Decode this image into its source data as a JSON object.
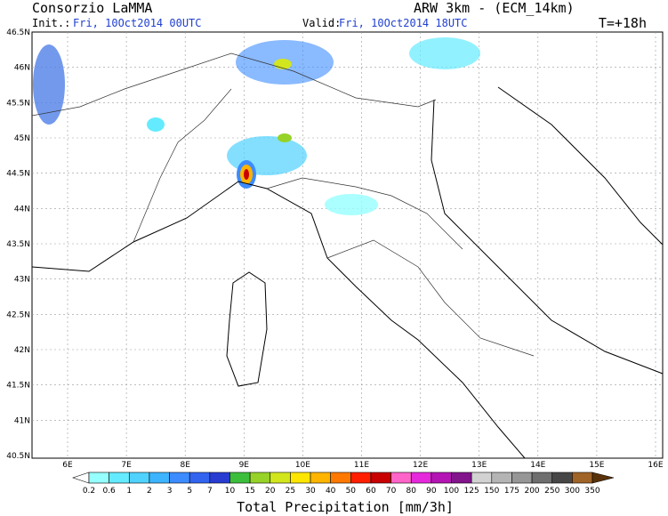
{
  "header": {
    "title_left": "Consorzio LaMMA",
    "title_right": "ARW 3km - (ECM_14km)",
    "init_label": "Init.:",
    "init_value": "Fri, 10Oct2014 00UTC",
    "valid_label": "Valid:",
    "valid_value": "Fri, 10Oct2014 18UTC",
    "lead_time": "T=+18h"
  },
  "map": {
    "lat_labels": [
      "46.5N",
      "46N",
      "45.5N",
      "45N",
      "44.5N",
      "44N",
      "43.5N",
      "43N",
      "42.5N",
      "42N",
      "41.5N",
      "41N",
      "40.5N"
    ],
    "lon_labels": [
      "6E",
      "7E",
      "8E",
      "9E",
      "10E",
      "11E",
      "12E",
      "13E",
      "14E",
      "15E",
      "16E"
    ]
  },
  "colorbar": {
    "title": "Total Precipitation [mm/3h]",
    "labels": [
      "0.2",
      "0.6",
      "1",
      "2",
      "3",
      "5",
      "7",
      "10",
      "15",
      "20",
      "25",
      "30",
      "40",
      "50",
      "60",
      "70",
      "80",
      "90",
      "100",
      "125",
      "150",
      "175",
      "200",
      "250",
      "300",
      "350"
    ],
    "colors": [
      "#ffffff",
      "#96ffff",
      "#64ebff",
      "#50d2ff",
      "#3cb4ff",
      "#3c8cff",
      "#3264f0",
      "#283cd2",
      "#3cbe3c",
      "#96d228",
      "#d2e61e",
      "#ffe600",
      "#ffb400",
      "#ff7800",
      "#ff1e00",
      "#c80000",
      "#ff64c8",
      "#e628dc",
      "#b414b4",
      "#82148c",
      "#d2d2d2",
      "#b4b4b4",
      "#969696",
      "#6e6e6e",
      "#464646",
      "#a06428",
      "#5a320a"
    ]
  }
}
